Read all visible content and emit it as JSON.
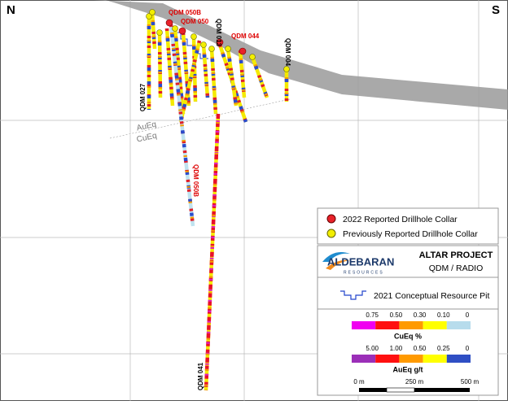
{
  "compass": {
    "north": "N",
    "south": "S"
  },
  "drillholes": {
    "labels": [
      "QDM 050B",
      "QDM 050",
      "QDM 013",
      "QDM 044",
      "QDM 004",
      "QDM 027",
      "QDM 050B",
      "QDM 041"
    ]
  },
  "boundary": {
    "upper": "AuEq",
    "lower": "CuEq"
  },
  "collar_legend": {
    "items": [
      "2022 Reported Drillhole Collar",
      "Previously Reported Drillhole Collar"
    ]
  },
  "legend": {
    "logo": "ALDEBARAN",
    "logo_sub": "RESOURCES",
    "project": "ALTAR PROJECT",
    "area": "QDM / RADIO",
    "pit": "2021 Conceptual Resource Pit",
    "cueq": {
      "ticks": [
        "0.75",
        "0.50",
        "0.30",
        "0.10",
        "0"
      ],
      "title": "CuEq %"
    },
    "aueq": {
      "ticks": [
        "5.00",
        "1.00",
        "0.50",
        "0.25",
        "0"
      ],
      "title": "AuEq g/t"
    },
    "scale": {
      "ticks": [
        "0 m",
        "250 m",
        "500 m"
      ]
    }
  }
}
